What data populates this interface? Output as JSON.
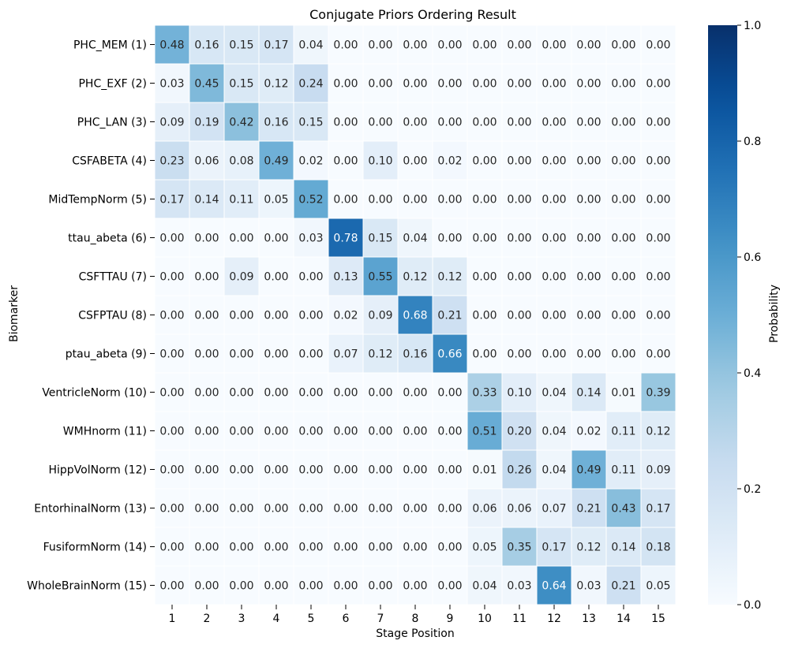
{
  "chart_data": {
    "type": "heatmap",
    "title": "Conjugate Priors Ordering Result",
    "xlabel": "Stage Position",
    "ylabel": "Biomarker",
    "colorbar_label": "Probability",
    "vmin": 0.0,
    "vmax": 1.0,
    "colorbar_ticks": [
      "0.0",
      "0.2",
      "0.4",
      "0.6",
      "0.8",
      "1.0"
    ],
    "colormap": "Blues",
    "x_categories": [
      "1",
      "2",
      "3",
      "4",
      "5",
      "6",
      "7",
      "8",
      "9",
      "10",
      "11",
      "12",
      "13",
      "14",
      "15"
    ],
    "y_categories": [
      "PHC_MEM (1)",
      "PHC_EXF (2)",
      "PHC_LAN (3)",
      "CSFABETA (4)",
      "MidTempNorm (5)",
      "ttau_abeta (6)",
      "CSFTTAU (7)",
      "CSFPTAU (8)",
      "ptau_abeta (9)",
      "VentricleNorm (10)",
      "WMHnorm (11)",
      "HippVolNorm (12)",
      "EntorhinalNorm (13)",
      "FusiformNorm (14)",
      "WholeBrainNorm (15)"
    ],
    "values": [
      [
        0.48,
        0.16,
        0.15,
        0.17,
        0.04,
        0.0,
        0.0,
        0.0,
        0.0,
        0.0,
        0.0,
        0.0,
        0.0,
        0.0,
        0.0
      ],
      [
        0.03,
        0.45,
        0.15,
        0.12,
        0.24,
        0.0,
        0.0,
        0.0,
        0.0,
        0.0,
        0.0,
        0.0,
        0.0,
        0.0,
        0.0
      ],
      [
        0.09,
        0.19,
        0.42,
        0.16,
        0.15,
        0.0,
        0.0,
        0.0,
        0.0,
        0.0,
        0.0,
        0.0,
        0.0,
        0.0,
        0.0
      ],
      [
        0.23,
        0.06,
        0.08,
        0.49,
        0.02,
        0.0,
        0.1,
        0.0,
        0.02,
        0.0,
        0.0,
        0.0,
        0.0,
        0.0,
        0.0
      ],
      [
        0.17,
        0.14,
        0.11,
        0.05,
        0.52,
        0.0,
        0.0,
        0.0,
        0.0,
        0.0,
        0.0,
        0.0,
        0.0,
        0.0,
        0.0
      ],
      [
        0.0,
        0.0,
        0.0,
        0.0,
        0.03,
        0.78,
        0.15,
        0.04,
        0.0,
        0.0,
        0.0,
        0.0,
        0.0,
        0.0,
        0.0
      ],
      [
        0.0,
        0.0,
        0.09,
        0.0,
        0.0,
        0.13,
        0.55,
        0.12,
        0.12,
        0.0,
        0.0,
        0.0,
        0.0,
        0.0,
        0.0
      ],
      [
        0.0,
        0.0,
        0.0,
        0.0,
        0.0,
        0.02,
        0.09,
        0.68,
        0.21,
        0.0,
        0.0,
        0.0,
        0.0,
        0.0,
        0.0
      ],
      [
        0.0,
        0.0,
        0.0,
        0.0,
        0.0,
        0.07,
        0.12,
        0.16,
        0.66,
        0.0,
        0.0,
        0.0,
        0.0,
        0.0,
        0.0
      ],
      [
        0.0,
        0.0,
        0.0,
        0.0,
        0.0,
        0.0,
        0.0,
        0.0,
        0.0,
        0.33,
        0.1,
        0.04,
        0.14,
        0.01,
        0.39
      ],
      [
        0.0,
        0.0,
        0.0,
        0.0,
        0.0,
        0.0,
        0.0,
        0.0,
        0.0,
        0.51,
        0.2,
        0.04,
        0.02,
        0.11,
        0.12
      ],
      [
        0.0,
        0.0,
        0.0,
        0.0,
        0.0,
        0.0,
        0.0,
        0.0,
        0.0,
        0.01,
        0.26,
        0.04,
        0.49,
        0.11,
        0.09
      ],
      [
        0.0,
        0.0,
        0.0,
        0.0,
        0.0,
        0.0,
        0.0,
        0.0,
        0.0,
        0.06,
        0.06,
        0.07,
        0.21,
        0.43,
        0.17
      ],
      [
        0.0,
        0.0,
        0.0,
        0.0,
        0.0,
        0.0,
        0.0,
        0.0,
        0.0,
        0.05,
        0.35,
        0.17,
        0.12,
        0.14,
        0.18
      ],
      [
        0.0,
        0.0,
        0.0,
        0.0,
        0.0,
        0.0,
        0.0,
        0.0,
        0.0,
        0.04,
        0.03,
        0.64,
        0.03,
        0.21,
        0.05
      ]
    ]
  }
}
